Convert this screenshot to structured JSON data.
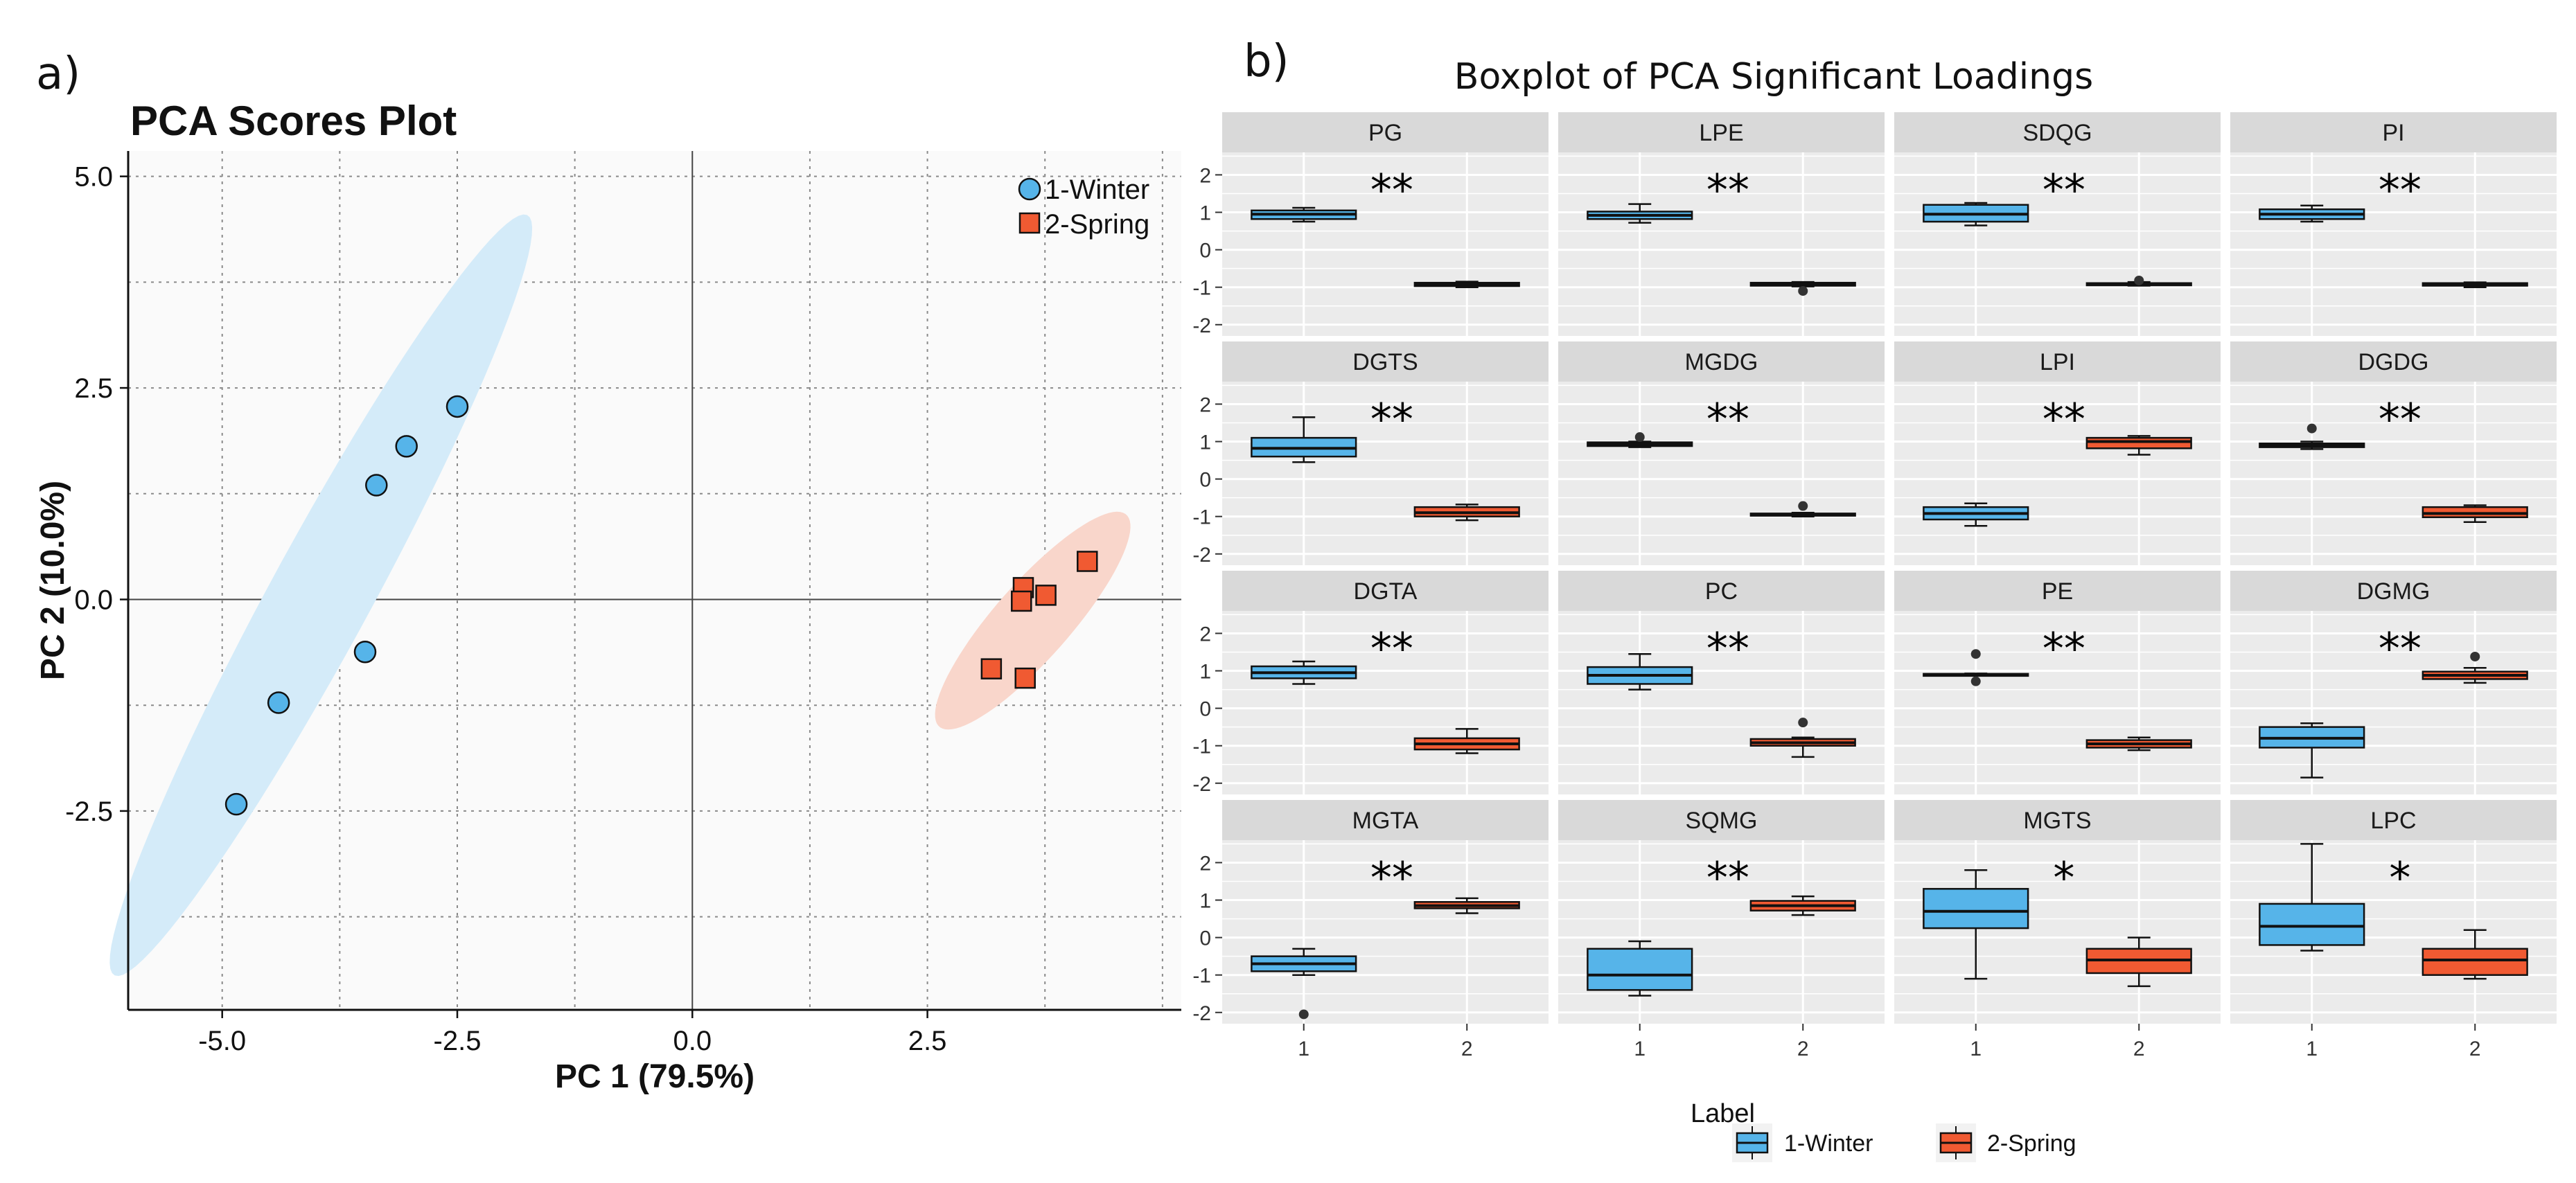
{
  "panel_a_label": "a)",
  "panel_b_label": "b)",
  "colors": {
    "winter_fill": "#56b4e9",
    "winter_ellipse": "#d4ebf9",
    "spring_fill": "#f05a32",
    "spring_ellipse": "#f9d6cb",
    "facet_bg": "#ebebeb",
    "strip_bg": "#d9d9d9",
    "pca_bg": "#fafafa"
  },
  "chart_data": [
    {
      "type": "scatter",
      "title": "PCA Scores Plot",
      "xlabel": "PC 1 (79.5%)",
      "ylabel": "PC 2 (10.0%)",
      "xlim": [
        -6.0,
        5.2
      ],
      "ylim": [
        -4.85,
        5.3
      ],
      "xticks": [
        -5.0,
        -2.5,
        0.0,
        2.5
      ],
      "xtick_labels": [
        "-5.0",
        "-2.5",
        "0.0",
        "2.5"
      ],
      "yticks": [
        -2.5,
        0.0,
        2.5,
        5.0
      ],
      "ytick_labels": [
        "-2.5",
        "0.0",
        "2.5",
        "5.0"
      ],
      "legend_position": "top-right",
      "series": [
        {
          "name": "1-Winter",
          "marker": "circle",
          "points": [
            [
              -4.85,
              -2.42
            ],
            [
              -4.4,
              -1.22
            ],
            [
              -3.48,
              -0.62
            ],
            [
              -3.36,
              1.35
            ],
            [
              -3.04,
              1.81
            ],
            [
              -2.5,
              2.28
            ]
          ],
          "ellipse": {
            "center": [
              -3.95,
              0.05
            ],
            "semi_major": 5.0,
            "semi_minor": 0.55,
            "angle_deg": 64
          }
        },
        {
          "name": "2-Spring",
          "marker": "square",
          "points": [
            [
              3.18,
              -0.82
            ],
            [
              3.52,
              0.14
            ],
            [
              3.5,
              -0.02
            ],
            [
              3.76,
              0.05
            ],
            [
              3.54,
              -0.93
            ],
            [
              4.2,
              0.45
            ]
          ],
          "ellipse": {
            "center": [
              3.62,
              -0.25
            ],
            "semi_major": 1.6,
            "semi_minor": 0.42,
            "angle_deg": 52
          }
        }
      ]
    },
    {
      "type": "box",
      "title": "Boxplot of PCA Significant Loadings",
      "categories": [
        "1",
        "2"
      ],
      "ylim": [
        -2.3,
        2.6
      ],
      "yticks": [
        -2,
        -1,
        0,
        1,
        2
      ],
      "ytick_labels": [
        "-2",
        "-1",
        "0",
        "1",
        "2"
      ],
      "legend_title": "Label",
      "legend": [
        "1-Winter",
        "2-Spring"
      ],
      "panels": [
        {
          "name": "PG",
          "sig": "**",
          "groups": [
            {
              "q1": 0.82,
              "med": 0.95,
              "q3": 1.05,
              "lo": 0.75,
              "hi": 1.12,
              "out": []
            },
            {
              "q1": -0.97,
              "med": -0.93,
              "q3": -0.88,
              "lo": -1.0,
              "hi": -0.85,
              "out": []
            }
          ]
        },
        {
          "name": "LPE",
          "sig": "**",
          "groups": [
            {
              "q1": 0.82,
              "med": 0.92,
              "q3": 1.02,
              "lo": 0.72,
              "hi": 1.22,
              "out": []
            },
            {
              "q1": -0.96,
              "med": -0.92,
              "q3": -0.88,
              "lo": -0.98,
              "hi": -0.86,
              "out": [
                -1.1
              ]
            }
          ]
        },
        {
          "name": "SDQG",
          "sig": "**",
          "groups": [
            {
              "q1": 0.75,
              "med": 0.95,
              "q3": 1.2,
              "lo": 0.65,
              "hi": 1.25,
              "out": []
            },
            {
              "q1": -0.95,
              "med": -0.92,
              "q3": -0.89,
              "lo": -0.96,
              "hi": -0.86,
              "out": [
                -0.82
              ]
            }
          ]
        },
        {
          "name": "PI",
          "sig": "**",
          "groups": [
            {
              "q1": 0.82,
              "med": 0.95,
              "q3": 1.08,
              "lo": 0.75,
              "hi": 1.18,
              "out": []
            },
            {
              "q1": -0.96,
              "med": -0.93,
              "q3": -0.89,
              "lo": -1.0,
              "hi": -0.87,
              "out": []
            }
          ]
        },
        {
          "name": "DGTS",
          "sig": "**",
          "groups": [
            {
              "q1": 0.6,
              "med": 0.82,
              "q3": 1.1,
              "lo": 0.45,
              "hi": 1.65,
              "out": []
            },
            {
              "q1": -1.0,
              "med": -0.9,
              "q3": -0.75,
              "lo": -1.1,
              "hi": -0.68,
              "out": []
            }
          ]
        },
        {
          "name": "MGDG",
          "sig": "**",
          "groups": [
            {
              "q1": 0.88,
              "med": 0.93,
              "q3": 0.98,
              "lo": 0.85,
              "hi": 1.0,
              "out": [
                1.12
              ]
            },
            {
              "q1": -0.98,
              "med": -0.95,
              "q3": -0.92,
              "lo": -1.0,
              "hi": -0.9,
              "out": [
                -0.72
              ]
            }
          ]
        },
        {
          "name": "LPI",
          "sig": "**",
          "groups": [
            {
              "q1": -1.08,
              "med": -0.92,
              "q3": -0.75,
              "lo": -1.25,
              "hi": -0.65,
              "out": []
            },
            {
              "q1": 0.82,
              "med": 1.0,
              "q3": 1.1,
              "lo": 0.65,
              "hi": 1.15,
              "out": []
            }
          ]
        },
        {
          "name": "DGDG",
          "sig": "**",
          "groups": [
            {
              "q1": 0.85,
              "med": 0.9,
              "q3": 0.95,
              "lo": 0.8,
              "hi": 1.0,
              "out": [
                1.35
              ]
            },
            {
              "q1": -1.02,
              "med": -0.92,
              "q3": -0.75,
              "lo": -1.15,
              "hi": -0.7,
              "out": []
            }
          ]
        },
        {
          "name": "DGTA",
          "sig": "**",
          "groups": [
            {
              "q1": 0.8,
              "med": 0.95,
              "q3": 1.12,
              "lo": 0.65,
              "hi": 1.25,
              "out": []
            },
            {
              "q1": -1.1,
              "med": -0.95,
              "q3": -0.8,
              "lo": -1.2,
              "hi": -0.55,
              "out": []
            }
          ]
        },
        {
          "name": "PC",
          "sig": "**",
          "groups": [
            {
              "q1": 0.65,
              "med": 0.88,
              "q3": 1.1,
              "lo": 0.5,
              "hi": 1.45,
              "out": []
            },
            {
              "q1": -1.0,
              "med": -0.92,
              "q3": -0.82,
              "lo": -1.3,
              "hi": -0.78,
              "out": [
                -0.38
              ]
            }
          ]
        },
        {
          "name": "PE",
          "sig": "**",
          "groups": [
            {
              "q1": 0.88,
              "med": 0.9,
              "q3": 0.92,
              "lo": 0.87,
              "hi": 0.93,
              "out": [
                1.45,
                0.72
              ]
            },
            {
              "q1": -1.05,
              "med": -0.95,
              "q3": -0.85,
              "lo": -1.12,
              "hi": -0.78,
              "out": []
            }
          ]
        },
        {
          "name": "DGMG",
          "sig": "**",
          "groups": [
            {
              "q1": -1.05,
              "med": -0.8,
              "q3": -0.5,
              "lo": -1.85,
              "hi": -0.4,
              "out": []
            },
            {
              "q1": 0.78,
              "med": 0.88,
              "q3": 0.98,
              "lo": 0.68,
              "hi": 1.08,
              "out": [
                1.38
              ]
            }
          ]
        },
        {
          "name": "MGTA",
          "sig": "**",
          "groups": [
            {
              "q1": -0.9,
              "med": -0.7,
              "q3": -0.5,
              "lo": -1.0,
              "hi": -0.3,
              "out": [
                -2.05
              ]
            },
            {
              "q1": 0.78,
              "med": 0.85,
              "q3": 0.95,
              "lo": 0.65,
              "hi": 1.05,
              "out": []
            }
          ]
        },
        {
          "name": "SQMG",
          "sig": "**",
          "groups": [
            {
              "q1": -1.4,
              "med": -1.0,
              "q3": -0.3,
              "lo": -1.55,
              "hi": -0.1,
              "out": []
            },
            {
              "q1": 0.72,
              "med": 0.85,
              "q3": 0.98,
              "lo": 0.6,
              "hi": 1.1,
              "out": []
            }
          ]
        },
        {
          "name": "MGTS",
          "sig": "*",
          "groups": [
            {
              "q1": 0.25,
              "med": 0.7,
              "q3": 1.3,
              "lo": -1.1,
              "hi": 1.8,
              "out": []
            },
            {
              "q1": -0.95,
              "med": -0.6,
              "q3": -0.3,
              "lo": -1.3,
              "hi": 0.0,
              "out": []
            }
          ]
        },
        {
          "name": "LPC",
          "sig": "*",
          "groups": [
            {
              "q1": -0.2,
              "med": 0.3,
              "q3": 0.9,
              "lo": -0.35,
              "hi": 2.5,
              "out": []
            },
            {
              "q1": -1.0,
              "med": -0.6,
              "q3": -0.3,
              "lo": -1.1,
              "hi": 0.2,
              "out": []
            }
          ]
        }
      ]
    }
  ]
}
